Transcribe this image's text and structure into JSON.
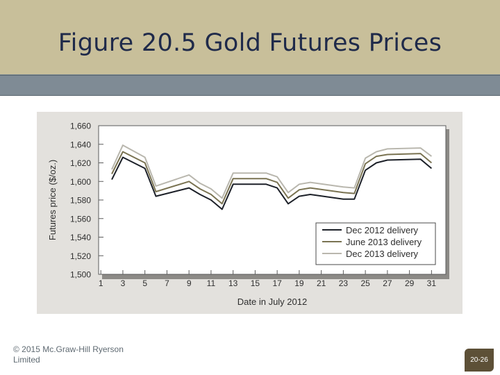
{
  "slide": {
    "title": "Figure 20.5 Gold Futures Prices",
    "footer_text": "© 2015 Mc.Graw-Hill Ryerson Limited",
    "page_number": "20-26"
  },
  "colors": {
    "title_bg": "#c8bf9a",
    "band": "#7f8b95",
    "chart_bg": "#e3e1dd",
    "badge_bg": "#5d5037"
  },
  "chart_data": {
    "type": "line",
    "title": "",
    "xlabel": "Date in July 2012",
    "ylabel": "Futures price ($/oz.)",
    "xlim": [
      0.8,
      32.3
    ],
    "ylim": [
      1500,
      1660
    ],
    "x_ticks": [
      1,
      3,
      5,
      7,
      9,
      11,
      13,
      15,
      17,
      19,
      21,
      23,
      25,
      27,
      29,
      31
    ],
    "y_ticks": [
      1500,
      1520,
      1540,
      1560,
      1580,
      1600,
      1620,
      1640,
      1660
    ],
    "y_tick_labels": [
      "1,500",
      "1,520",
      "1,540",
      "1,560",
      "1,580",
      "1,600",
      "1,620",
      "1,640",
      "1,660"
    ],
    "x": [
      2,
      3,
      5,
      6,
      9,
      10,
      11,
      12,
      13,
      16,
      17,
      18,
      19,
      20,
      23,
      24,
      25,
      26,
      27,
      30,
      31
    ],
    "series": [
      {
        "name": "Dec 2012 delivery",
        "color": "#1c2028",
        "values": [
          1602,
          1626,
          1614,
          1584,
          1593,
          1586,
          1580,
          1570,
          1597,
          1597,
          1593,
          1576,
          1584,
          1586,
          1581,
          1581,
          1612,
          1620,
          1623,
          1624,
          1614
        ]
      },
      {
        "name": "June 2013 delivery",
        "color": "#7a7352",
        "values": [
          1608,
          1632,
          1620,
          1589,
          1600,
          1592,
          1586,
          1576,
          1603,
          1603,
          1599,
          1582,
          1591,
          1593,
          1588,
          1587,
          1619,
          1627,
          1629,
          1630,
          1620
        ]
      },
      {
        "name": "Dec 2013 delivery",
        "color": "#b9b7ae",
        "values": [
          1613,
          1639,
          1626,
          1595,
          1607,
          1598,
          1592,
          1582,
          1609,
          1609,
          1605,
          1588,
          1597,
          1599,
          1594,
          1593,
          1625,
          1632,
          1635,
          1636,
          1627
        ]
      }
    ],
    "legend_position": "bottom-right",
    "grid": false
  }
}
